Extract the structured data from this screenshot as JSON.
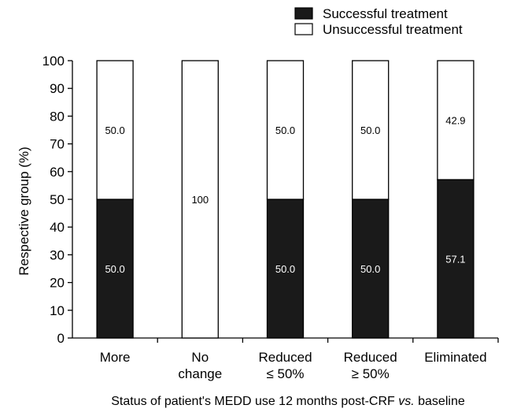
{
  "chart_data": {
    "type": "bar",
    "stacked": true,
    "categories": [
      [
        "More"
      ],
      [
        "No",
        "change"
      ],
      [
        "Reduced",
        "≤ 50%"
      ],
      [
        "Reduced",
        "≥ 50%"
      ],
      [
        "Eliminated"
      ]
    ],
    "series": [
      {
        "name": "Successful treatment",
        "color": "#1a1a1a",
        "label_color": "#ffffff",
        "values": [
          50.0,
          0,
          50.0,
          50.0,
          57.1
        ],
        "labels": [
          "50.0",
          "",
          "50.0",
          "50.0",
          "57.1"
        ]
      },
      {
        "name": "Unsuccessful treatment",
        "color": "#ffffff",
        "label_color": "#000000",
        "values": [
          50.0,
          100,
          50.0,
          50.0,
          42.9
        ],
        "labels": [
          "50.0",
          "100",
          "50.0",
          "50.0",
          "42.9"
        ]
      }
    ],
    "ylabel": "Respective group (%)",
    "xlabel": "",
    "ylim": [
      0,
      100
    ],
    "yticks": [
      0,
      10,
      20,
      30,
      40,
      50,
      60,
      70,
      80,
      90,
      100
    ],
    "legend_position": "top-right",
    "grid": false
  },
  "caption": {
    "prefix": "Status of patient's MEDD use 12 months post-CRF ",
    "italic": "vs.",
    "suffix": " baseline"
  }
}
